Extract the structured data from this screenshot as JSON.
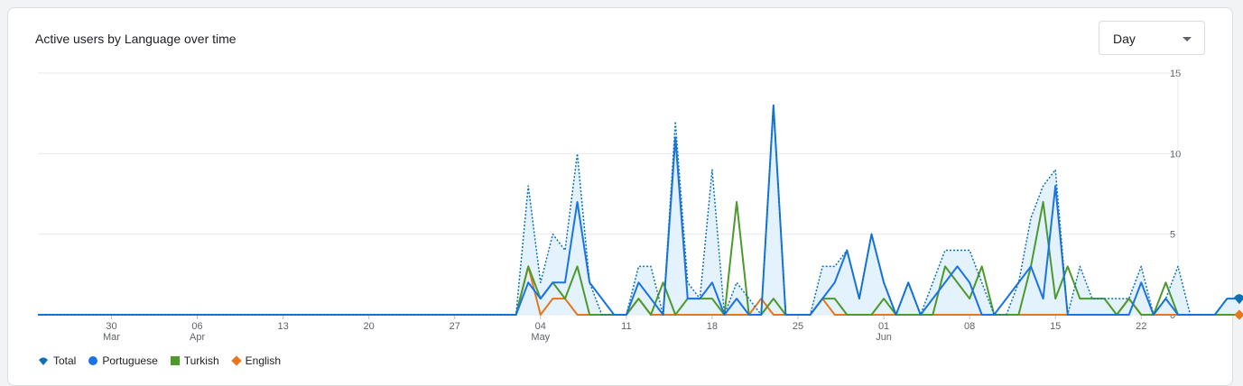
{
  "header": {
    "title": "Active users by Language over time"
  },
  "dropdown": {
    "value": "Day"
  },
  "colors": {
    "total": "#0b72b5",
    "portuguese": "#1a73e8",
    "turkish": "#4c9a2a",
    "english": "#e8761a",
    "fill": "#e3f2fc",
    "grid": "#e8eaed",
    "text": "#5f6368"
  },
  "chart_data": {
    "type": "line",
    "title": "Active users by Language over time",
    "x_start": "2023-03-24",
    "x_end": "2023-06-25",
    "ylim": [
      0,
      15
    ],
    "yticks": [
      15,
      10,
      5,
      0
    ],
    "xticks": [
      {
        "date": "2023-03-30",
        "label": "30",
        "sub": "Mar"
      },
      {
        "date": "2023-04-06",
        "label": "06",
        "sub": "Apr"
      },
      {
        "date": "2023-04-13",
        "label": "13",
        "sub": ""
      },
      {
        "date": "2023-04-20",
        "label": "20",
        "sub": ""
      },
      {
        "date": "2023-04-27",
        "label": "27",
        "sub": ""
      },
      {
        "date": "2023-05-04",
        "label": "04",
        "sub": "May"
      },
      {
        "date": "2023-05-11",
        "label": "11",
        "sub": ""
      },
      {
        "date": "2023-05-18",
        "label": "18",
        "sub": ""
      },
      {
        "date": "2023-05-25",
        "label": "25",
        "sub": ""
      },
      {
        "date": "2023-06-01",
        "label": "01",
        "sub": "Jun"
      },
      {
        "date": "2023-06-08",
        "label": "08",
        "sub": ""
      },
      {
        "date": "2023-06-15",
        "label": "15",
        "sub": ""
      },
      {
        "date": "2023-06-22",
        "label": "22",
        "sub": ""
      }
    ],
    "series": [
      {
        "name": "Total",
        "values": [
          0,
          0,
          0,
          0,
          0,
          0,
          0,
          0,
          0,
          0,
          0,
          0,
          0,
          0,
          0,
          0,
          0,
          0,
          0,
          0,
          0,
          0,
          0,
          0,
          0,
          0,
          0,
          0,
          0,
          0,
          0,
          0,
          0,
          0,
          0,
          0,
          0,
          0,
          0,
          0,
          8,
          2,
          5,
          4,
          10,
          2,
          0,
          0,
          0,
          3,
          3,
          0,
          12,
          2,
          1,
          9,
          0,
          2,
          1,
          0,
          13,
          0,
          0,
          0,
          3,
          3,
          4,
          1,
          5,
          2,
          0,
          2,
          0,
          2,
          4,
          4,
          4,
          2,
          0,
          0,
          2,
          6,
          8,
          9,
          0,
          3,
          1,
          1,
          1,
          1,
          3,
          0,
          1,
          3,
          0,
          0,
          0,
          1,
          1
        ]
      },
      {
        "name": "Portuguese",
        "values": [
          0,
          0,
          0,
          0,
          0,
          0,
          0,
          0,
          0,
          0,
          0,
          0,
          0,
          0,
          0,
          0,
          0,
          0,
          0,
          0,
          0,
          0,
          0,
          0,
          0,
          0,
          0,
          0,
          0,
          0,
          0,
          0,
          0,
          0,
          0,
          0,
          0,
          0,
          0,
          0,
          2,
          1,
          2,
          2,
          7,
          2,
          1,
          0,
          0,
          2,
          1,
          0,
          11,
          1,
          1,
          2,
          0,
          1,
          0,
          0,
          13,
          0,
          0,
          0,
          1,
          2,
          4,
          1,
          5,
          2,
          0,
          2,
          0,
          1,
          2,
          3,
          2,
          0,
          0,
          1,
          2,
          3,
          1,
          8,
          0,
          0,
          0,
          0,
          0,
          0,
          2,
          0,
          1,
          0,
          0,
          0,
          0,
          1,
          1
        ]
      },
      {
        "name": "Turkish",
        "values": [
          0,
          0,
          0,
          0,
          0,
          0,
          0,
          0,
          0,
          0,
          0,
          0,
          0,
          0,
          0,
          0,
          0,
          0,
          0,
          0,
          0,
          0,
          0,
          0,
          0,
          0,
          0,
          0,
          0,
          0,
          0,
          0,
          0,
          0,
          0,
          0,
          0,
          0,
          0,
          0,
          3,
          1,
          2,
          1,
          3,
          0,
          0,
          0,
          0,
          1,
          0,
          2,
          0,
          1,
          1,
          1,
          0,
          7,
          0,
          0,
          1,
          0,
          0,
          0,
          1,
          1,
          0,
          0,
          0,
          1,
          0,
          0,
          0,
          0,
          3,
          2,
          1,
          3,
          0,
          0,
          0,
          3,
          7,
          1,
          3,
          1,
          1,
          1,
          0,
          1,
          0,
          0,
          2,
          0,
          0,
          0,
          0,
          0,
          0
        ]
      },
      {
        "name": "English",
        "values": [
          0,
          0,
          0,
          0,
          0,
          0,
          0,
          0,
          0,
          0,
          0,
          0,
          0,
          0,
          0,
          0,
          0,
          0,
          0,
          0,
          0,
          0,
          0,
          0,
          0,
          0,
          0,
          0,
          0,
          0,
          0,
          0,
          0,
          0,
          0,
          0,
          0,
          0,
          0,
          0,
          3,
          0,
          1,
          1,
          0,
          0,
          0,
          0,
          0,
          1,
          0,
          0,
          0,
          0,
          0,
          0,
          0,
          0,
          0,
          1,
          0,
          0,
          0,
          0,
          1,
          0,
          0,
          0,
          0,
          0,
          0,
          0,
          0,
          0,
          0,
          0,
          0,
          0,
          0,
          0,
          0,
          0,
          0,
          0,
          0,
          0,
          0,
          0,
          0,
          1,
          0,
          0,
          0,
          0,
          0,
          0,
          0,
          0,
          0
        ]
      }
    ],
    "legend_position": "bottom-left",
    "grid": true
  }
}
